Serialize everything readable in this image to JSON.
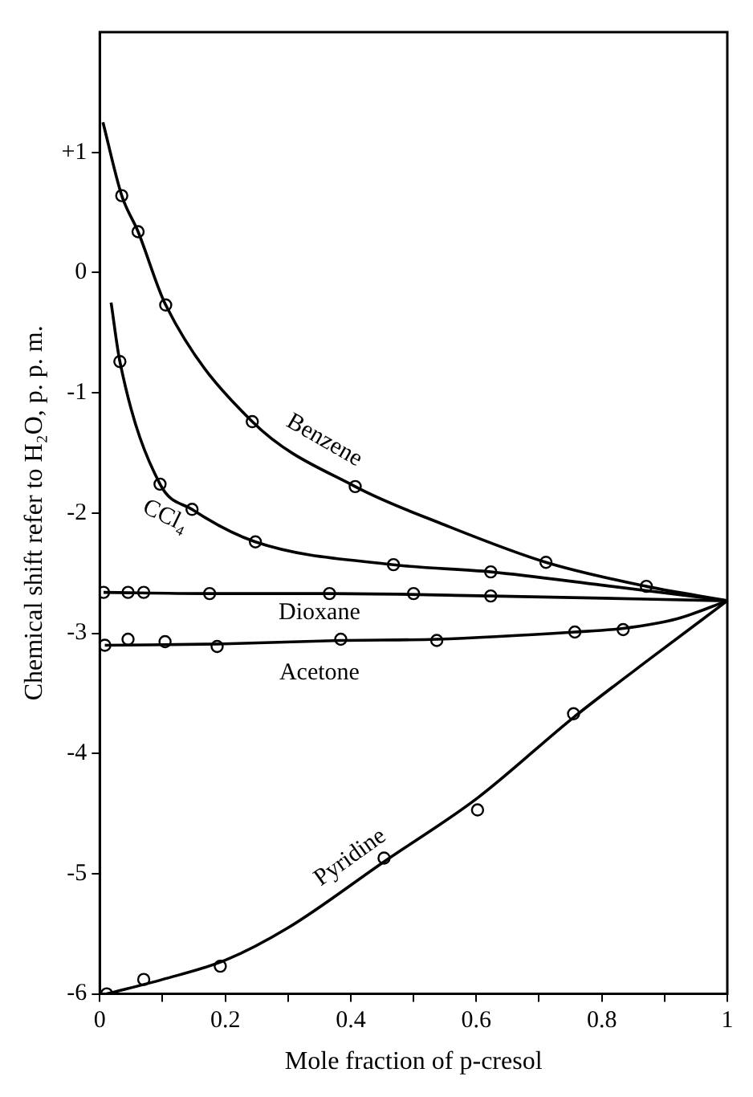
{
  "chart_data": {
    "type": "scatter",
    "xlabel": "Mole fraction of p-cresol",
    "ylabel": "Chemical shift refer to H₂O, p. p. m.",
    "xlim": [
      0,
      1
    ],
    "ylim": [
      -6,
      2
    ],
    "xticks": [
      0,
      {
        "value": 0.1,
        "label": null
      },
      0.2,
      {
        "value": 0.3,
        "label": null
      },
      0.4,
      {
        "value": 0.5,
        "label": null
      },
      0.6,
      {
        "value": 0.7,
        "label": null
      },
      0.8,
      {
        "value": 0.9,
        "label": null
      },
      1
    ],
    "yticks": [
      -6,
      -5,
      -4,
      -3,
      -2,
      -1,
      0,
      {
        "value": 1,
        "label": "+1"
      }
    ],
    "grid": false,
    "legend": false,
    "series": [
      {
        "type": "line",
        "name": "Benzene",
        "marker": "none",
        "color": "#000000",
        "x": [
          0.005,
          0.035,
          0.061,
          0.105,
          0.243,
          0.407,
          0.55,
          0.711,
          0.871,
          1
        ],
        "values": [
          1.25,
          0.64,
          0.34,
          -0.27,
          -1.24,
          -1.78,
          -2.1,
          -2.41,
          -2.61,
          -2.73
        ]
      },
      {
        "type": "line",
        "name": "CCl₄",
        "marker": "none",
        "color": "#000000",
        "x": [
          0.018,
          0.032,
          0.096,
          0.147,
          0.248,
          0.468,
          0.623,
          0.8,
          1
        ],
        "values": [
          -0.25,
          -0.74,
          -1.76,
          -1.97,
          -2.24,
          -2.43,
          -2.49,
          -2.6,
          -2.73
        ]
      },
      {
        "type": "line",
        "name": "Dioxane",
        "marker": "none",
        "color": "#000000",
        "x": [
          0.006,
          0.175,
          0.366,
          0.623,
          1
        ],
        "values": [
          -2.66,
          -2.67,
          -2.67,
          -2.69,
          -2.73
        ]
      },
      {
        "type": "line",
        "name": "Acetone",
        "marker": "none",
        "color": "#000000",
        "x": [
          0.008,
          0.187,
          0.384,
          0.537,
          0.757,
          0.834,
          0.92,
          1
        ],
        "values": [
          -3.1,
          -3.09,
          -3.06,
          -3.05,
          -2.99,
          -2.96,
          -2.88,
          -2.73
        ]
      },
      {
        "type": "line",
        "name": "Pyridine",
        "marker": "none",
        "color": "#000000",
        "x": [
          0.011,
          0.1,
          0.2,
          0.3,
          0.453,
          0.602,
          0.755,
          0.88,
          1
        ],
        "values": [
          -6,
          -5.88,
          -5.72,
          -5.45,
          -4.9,
          -4.37,
          -3.7,
          -3.2,
          -2.73
        ]
      },
      {
        "marker": "circle",
        "color": "#000000",
        "x": [
          0.035,
          0.061,
          0.105,
          0.243,
          0.407,
          0.711,
          0.871
        ],
        "values": [
          0.64,
          0.34,
          -0.27,
          -1.24,
          -1.78,
          -2.41,
          -2.61
        ]
      },
      {
        "marker": "circle",
        "color": "#000000",
        "x": [
          0.032,
          0.096,
          0.147,
          0.248,
          0.468,
          0.623
        ],
        "values": [
          -0.74,
          -1.76,
          -1.97,
          -2.24,
          -2.43,
          -2.49
        ]
      },
      {
        "marker": "circle",
        "color": "#000000",
        "x": [
          0.006,
          0.045,
          0.07,
          0.175,
          0.366,
          0.5,
          0.623
        ],
        "values": [
          -2.66,
          -2.66,
          -2.66,
          -2.67,
          -2.67,
          -2.67,
          -2.69
        ]
      },
      {
        "marker": "circle",
        "color": "#000000",
        "x": [
          0.008,
          0.045,
          0.104,
          0.187,
          0.384,
          0.537,
          0.757,
          0.834
        ],
        "values": [
          -3.1,
          -3.05,
          -3.07,
          -3.11,
          -3.05,
          -3.06,
          -2.99,
          -2.97
        ]
      },
      {
        "marker": "circle",
        "color": "#000000",
        "x": [
          0.011,
          0.07,
          0.192,
          0.453,
          0.602,
          0.755
        ],
        "values": [
          -6,
          -5.88,
          -5.77,
          -4.87,
          -4.47,
          -3.67
        ]
      }
    ]
  }
}
